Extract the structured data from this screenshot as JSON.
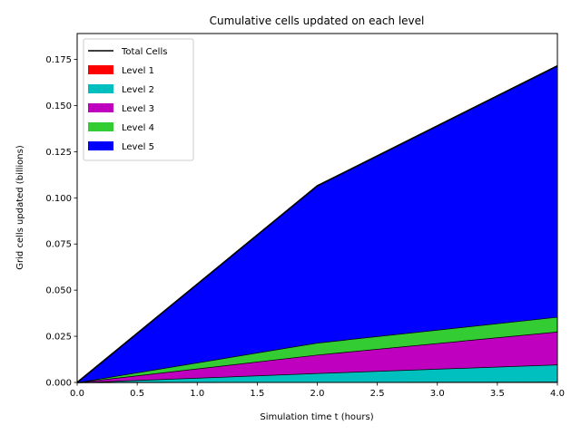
{
  "chart_data": {
    "type": "area",
    "title": "Cumulative cells updated on each level",
    "xlabel": "Simulation time t (hours)",
    "ylabel": "Grid cells updated (billions)",
    "xlim": [
      0,
      4
    ],
    "ylim": [
      0,
      0.189
    ],
    "x": [
      0,
      2,
      4
    ],
    "x_ticks": [
      0,
      0.5,
      1,
      1.5,
      2,
      2.5,
      3,
      3.5,
      4
    ],
    "x_tick_labels": [
      "0.0",
      "0.5",
      "1.0",
      "1.5",
      "2.0",
      "2.5",
      "3.0",
      "3.5",
      "4.0"
    ],
    "y_ticks": [
      0,
      0.025,
      0.05,
      0.075,
      0.1,
      0.125,
      0.15,
      0.175
    ],
    "y_tick_labels": [
      "0.000",
      "0.025",
      "0.050",
      "0.075",
      "0.100",
      "0.125",
      "0.150",
      "0.175"
    ],
    "stacked": true,
    "grid": false,
    "legend_position": "top-left",
    "total": {
      "name": "Total Cells",
      "color": "#000000",
      "values": [
        0,
        0.1065,
        0.1715
      ]
    },
    "series": [
      {
        "name": "Level 1",
        "color": "#ff0000",
        "values": [
          0,
          0.0002,
          0.0004
        ]
      },
      {
        "name": "Level 2",
        "color": "#00bfbf",
        "values": [
          0,
          0.0048,
          0.0093
        ]
      },
      {
        "name": "Level 3",
        "color": "#bf00bf",
        "values": [
          0,
          0.01,
          0.0178
        ]
      },
      {
        "name": "Level 4",
        "color": "#33cc33",
        "values": [
          0,
          0.0065,
          0.008
        ]
      },
      {
        "name": "Level 5",
        "color": "#0000ff",
        "values": [
          0,
          0.085,
          0.136
        ]
      }
    ]
  }
}
